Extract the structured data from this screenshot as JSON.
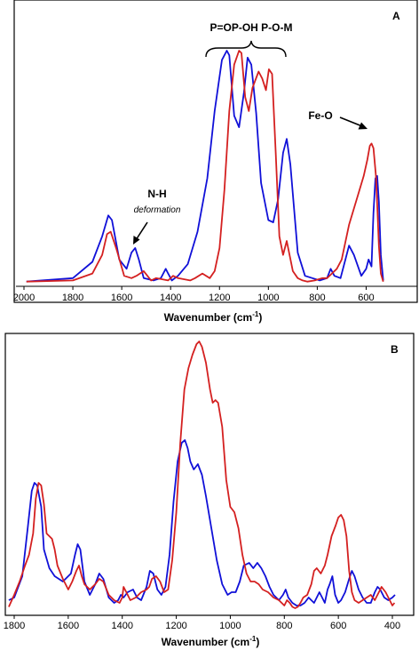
{
  "chart_data": [
    {
      "panel": "A",
      "type": "line",
      "xlabel": "Wavenumber (cm⁻¹)",
      "xlim": [
        2000,
        400
      ],
      "ylim": [
        0,
        1
      ],
      "x_ticks": [
        "2000",
        "1800",
        "1600",
        "1400",
        "1200",
        "1000",
        "800",
        "600"
      ],
      "x_tick_values": [
        2000,
        1800,
        1600,
        1400,
        1200,
        1000,
        800,
        600
      ],
      "annotations": {
        "bands": "P=OP-OH P-O-M",
        "nh": "N-H",
        "nh_sub": "deformation",
        "feo": "Fe-O"
      },
      "series": [
        {
          "color": "#1010d8",
          "x": [
            1990,
            1800,
            1720,
            1680,
            1655,
            1640,
            1610,
            1580,
            1560,
            1545,
            1530,
            1510,
            1470,
            1440,
            1420,
            1410,
            1395,
            1370,
            1330,
            1290,
            1250,
            1220,
            1190,
            1170,
            1160,
            1140,
            1120,
            1100,
            1085,
            1070,
            1050,
            1030,
            1000,
            980,
            960,
            940,
            925,
            910,
            880,
            850,
            820,
            790,
            760,
            745,
            730,
            705,
            685,
            670,
            650,
            620,
            600,
            590,
            578,
            570,
            562,
            555,
            548,
            540,
            530
          ],
          "y": [
            0.005,
            0.02,
            0.09,
            0.2,
            0.29,
            0.27,
            0.1,
            0.06,
            0.13,
            0.15,
            0.1,
            0.02,
            0.01,
            0.02,
            0.06,
            0.04,
            0.01,
            0.03,
            0.08,
            0.22,
            0.45,
            0.74,
            0.96,
            1.0,
            0.98,
            0.72,
            0.67,
            0.82,
            0.97,
            0.94,
            0.73,
            0.43,
            0.27,
            0.26,
            0.36,
            0.56,
            0.62,
            0.51,
            0.13,
            0.03,
            0.02,
            0.01,
            0.02,
            0.06,
            0.03,
            0.02,
            0.1,
            0.16,
            0.12,
            0.03,
            0.06,
            0.1,
            0.07,
            0.3,
            0.45,
            0.46,
            0.35,
            0.12,
            0.01
          ]
        },
        {
          "color": "#d42020",
          "x": [
            1990,
            1800,
            1720,
            1680,
            1660,
            1645,
            1620,
            1590,
            1560,
            1540,
            1510,
            1480,
            1460,
            1410,
            1390,
            1370,
            1320,
            1300,
            1270,
            1240,
            1220,
            1200,
            1180,
            1160,
            1140,
            1120,
            1110,
            1095,
            1080,
            1065,
            1040,
            1025,
            1010,
            998,
            985,
            970,
            955,
            940,
            925,
            900,
            880,
            860,
            840,
            810,
            780,
            760,
            740,
            720,
            700,
            670,
            650,
            630,
            610,
            595,
            585,
            578,
            570,
            560,
            555,
            548,
            540,
            530
          ],
          "y": [
            0.005,
            0.01,
            0.04,
            0.12,
            0.21,
            0.22,
            0.14,
            0.03,
            0.02,
            0.03,
            0.05,
            0.01,
            0.02,
            0.01,
            0.03,
            0.02,
            0.01,
            0.02,
            0.04,
            0.02,
            0.05,
            0.15,
            0.4,
            0.74,
            0.94,
            1.0,
            0.99,
            0.8,
            0.74,
            0.84,
            0.91,
            0.88,
            0.83,
            0.92,
            0.9,
            0.56,
            0.2,
            0.12,
            0.18,
            0.05,
            0.02,
            0.01,
            0.005,
            0.01,
            0.02,
            0.02,
            0.04,
            0.06,
            0.1,
            0.25,
            0.32,
            0.39,
            0.46,
            0.53,
            0.59,
            0.6,
            0.58,
            0.46,
            0.34,
            0.16,
            0.04,
            0.005
          ]
        }
      ]
    },
    {
      "panel": "B",
      "type": "line",
      "xlabel": "Wavenumber (cm⁻¹)",
      "xlim": [
        1820,
        390
      ],
      "ylim": [
        0,
        1
      ],
      "x_ticks": [
        "1800",
        "1600",
        "1400",
        "1200",
        "1000",
        "800",
        "600",
        "400"
      ],
      "x_tick_values": [
        1800,
        1600,
        1400,
        1200,
        1000,
        800,
        600,
        400
      ],
      "series": [
        {
          "color": "#1010d8",
          "x": [
            1820,
            1800,
            1770,
            1750,
            1735,
            1725,
            1715,
            1700,
            1690,
            1670,
            1650,
            1620,
            1590,
            1575,
            1565,
            1555,
            1540,
            1520,
            1500,
            1485,
            1470,
            1450,
            1430,
            1415,
            1405,
            1395,
            1380,
            1360,
            1345,
            1330,
            1310,
            1298,
            1285,
            1270,
            1255,
            1240,
            1225,
            1210,
            1195,
            1180,
            1168,
            1158,
            1148,
            1135,
            1120,
            1105,
            1090,
            1070,
            1050,
            1030,
            1010,
            995,
            980,
            965,
            950,
            930,
            915,
            900,
            885,
            870,
            855,
            840,
            820,
            805,
            795,
            785,
            770,
            755,
            740,
            725,
            710,
            700,
            690,
            680,
            670,
            660,
            650,
            640,
            632,
            622,
            612,
            600,
            590,
            575,
            560,
            550,
            540,
            525,
            510,
            495,
            480,
            465,
            455,
            445,
            430,
            415,
            400,
            390
          ],
          "y": [
            0.03,
            0.04,
            0.12,
            0.3,
            0.44,
            0.47,
            0.46,
            0.38,
            0.22,
            0.15,
            0.12,
            0.1,
            0.13,
            0.2,
            0.24,
            0.22,
            0.1,
            0.05,
            0.09,
            0.13,
            0.11,
            0.04,
            0.02,
            0.03,
            0.05,
            0.04,
            0.06,
            0.07,
            0.04,
            0.03,
            0.08,
            0.14,
            0.13,
            0.07,
            0.05,
            0.08,
            0.2,
            0.4,
            0.55,
            0.62,
            0.63,
            0.6,
            0.55,
            0.52,
            0.54,
            0.5,
            0.42,
            0.3,
            0.18,
            0.09,
            0.05,
            0.06,
            0.06,
            0.1,
            0.16,
            0.17,
            0.15,
            0.17,
            0.15,
            0.12,
            0.08,
            0.05,
            0.03,
            0.05,
            0.07,
            0.04,
            0.02,
            0.01,
            0.01,
            0.02,
            0.04,
            0.03,
            0.02,
            0.04,
            0.06,
            0.04,
            0.02,
            0.07,
            0.09,
            0.12,
            0.05,
            0.02,
            0.03,
            0.06,
            0.11,
            0.14,
            0.12,
            0.07,
            0.04,
            0.02,
            0.02,
            0.06,
            0.08,
            0.07,
            0.04,
            0.03,
            0.04,
            0.05
          ]
        },
        {
          "color": "#d42020",
          "x": [
            1820,
            1800,
            1780,
            1760,
            1745,
            1730,
            1720,
            1710,
            1700,
            1690,
            1680,
            1670,
            1660,
            1650,
            1640,
            1620,
            1600,
            1585,
            1570,
            1560,
            1550,
            1540,
            1520,
            1500,
            1485,
            1470,
            1450,
            1430,
            1410,
            1400,
            1395,
            1385,
            1370,
            1350,
            1330,
            1310,
            1300,
            1290,
            1275,
            1260,
            1245,
            1230,
            1215,
            1200,
            1185,
            1170,
            1155,
            1140,
            1125,
            1115,
            1105,
            1090,
            1075,
            1065,
            1055,
            1045,
            1030,
            1015,
            1000,
            985,
            970,
            955,
            940,
            925,
            910,
            895,
            880,
            860,
            840,
            820,
            800,
            790,
            780,
            770,
            760,
            750,
            740,
            730,
            715,
            700,
            690,
            680,
            665,
            650,
            640,
            625,
            610,
            600,
            590,
            580,
            570,
            560,
            550,
            540,
            525,
            510,
            495,
            480,
            465,
            450,
            440,
            425,
            410,
            400,
            392
          ],
          "y": [
            0.005,
            0.05,
            0.1,
            0.16,
            0.2,
            0.28,
            0.41,
            0.47,
            0.46,
            0.39,
            0.28,
            0.27,
            0.26,
            0.22,
            0.16,
            0.11,
            0.07,
            0.1,
            0.14,
            0.16,
            0.12,
            0.09,
            0.07,
            0.09,
            0.11,
            0.1,
            0.05,
            0.03,
            0.02,
            0.04,
            0.08,
            0.06,
            0.03,
            0.04,
            0.06,
            0.07,
            0.08,
            0.11,
            0.12,
            0.1,
            0.06,
            0.07,
            0.18,
            0.36,
            0.62,
            0.82,
            0.9,
            0.95,
            0.99,
            1.0,
            0.98,
            0.92,
            0.82,
            0.77,
            0.78,
            0.77,
            0.68,
            0.48,
            0.38,
            0.36,
            0.3,
            0.2,
            0.13,
            0.1,
            0.1,
            0.09,
            0.07,
            0.06,
            0.04,
            0.03,
            0.01,
            0.03,
            0.02,
            0.005,
            0.0,
            0.005,
            0.02,
            0.04,
            0.05,
            0.09,
            0.14,
            0.15,
            0.13,
            0.16,
            0.2,
            0.27,
            0.31,
            0.34,
            0.35,
            0.33,
            0.27,
            0.14,
            0.06,
            0.03,
            0.02,
            0.03,
            0.04,
            0.05,
            0.03,
            0.06,
            0.08,
            0.06,
            0.03,
            0.01,
            0.02
          ]
        }
      ]
    }
  ],
  "panel_a": {
    "label": "A",
    "xlabel": "Wavenumber (cm",
    "xlabel_sup": "-1",
    "xlabel_end": ")",
    "ann_bands": "P=OP-OH P-O-M",
    "ann_nh": "N-H",
    "ann_nh_sub": "deformation",
    "ann_feo": "Fe-O"
  },
  "panel_b": {
    "label": "B",
    "xlabel": "Wavenumber (cm",
    "xlabel_sup": "-1",
    "xlabel_end": ")"
  },
  "colors": {
    "blue": "#1010d8",
    "red": "#d42020"
  }
}
